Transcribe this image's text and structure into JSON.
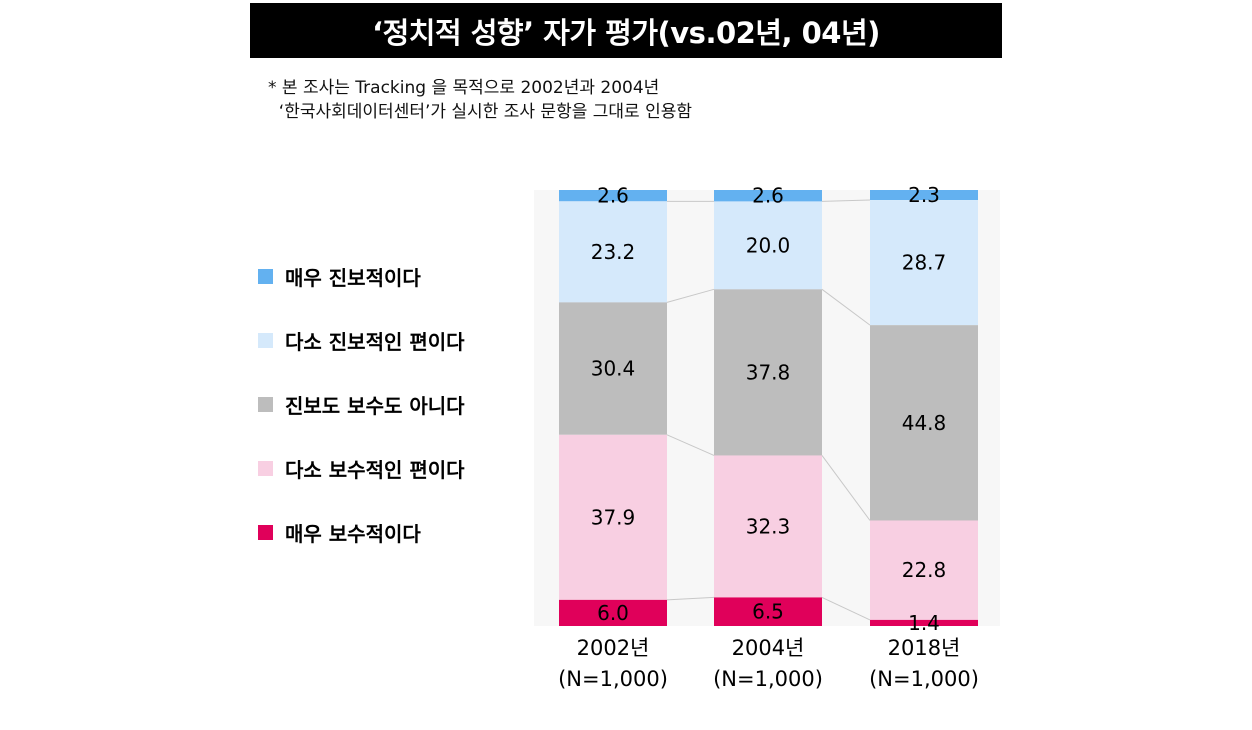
{
  "title": "‘정치적 성향’ 자가 평가(vs.02년, 04년)",
  "note": {
    "line1": "* 본 조사는 Tracking 을 목적으로 2002년과 2004년",
    "line2": "  ‘한국사회데이터센터’가 실시한 조사 문항을 그대로 인용함"
  },
  "colors": {
    "매우 진보적이다": "#63b1f0",
    "다소 진보적인 편이다": "#d5e9fb",
    "진보도 보수도 아니다": "#bdbdbd",
    "다소 보수적인 편이다": "#f8cfe2",
    "매우 보수적이다": "#e0005a",
    "plot_background": "#f7f7f7",
    "connector": "#c8c8c8"
  },
  "chart_data": {
    "type": "bar",
    "stacked": true,
    "percent_stacked": true,
    "categories": [
      "2002년",
      "2004년",
      "2018년"
    ],
    "category_subtitles": [
      "(N=1,000)",
      "(N=1,000)",
      "(N=1,000)"
    ],
    "series": [
      {
        "name": "매우 진보적이다",
        "values": [
          2.6,
          2.6,
          2.3
        ]
      },
      {
        "name": "다소 진보적인 편이다",
        "values": [
          23.2,
          20.0,
          28.7
        ]
      },
      {
        "name": "진보도 보수도 아니다",
        "values": [
          30.4,
          37.8,
          44.8
        ]
      },
      {
        "name": "다소 보수적인 편이다",
        "values": [
          37.9,
          32.3,
          22.8
        ]
      },
      {
        "name": "매우 보수적이다",
        "values": [
          6.0,
          6.5,
          1.4
        ]
      }
    ],
    "data_labels": [
      [
        "2.6",
        "2.6",
        "2.3"
      ],
      [
        "23.2",
        "20.0",
        "28.7"
      ],
      [
        "30.4",
        "37.8",
        "44.8"
      ],
      [
        "37.9",
        "32.3",
        "22.8"
      ],
      [
        "6.0",
        "6.5",
        "1.4"
      ]
    ],
    "legend_order": [
      "매우 진보적이다",
      "다소 진보적인 편이다",
      "진보도 보수도 아니다",
      "다소 보수적인 편이다",
      "매우 보수적이다"
    ],
    "legend_position": "left",
    "series_connectors": true,
    "grid": false
  }
}
